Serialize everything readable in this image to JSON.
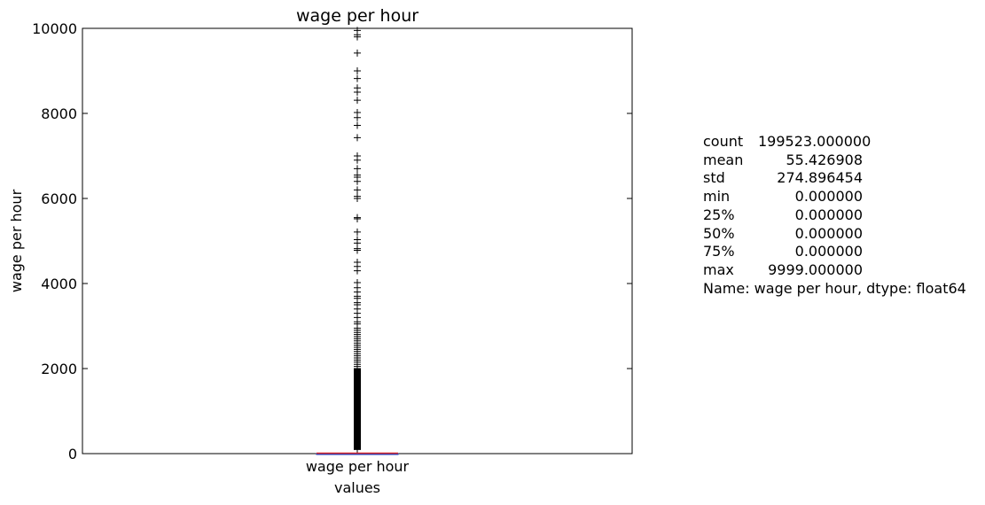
{
  "chart_data": {
    "type": "box",
    "title": "wage per hour",
    "xlabel": "values",
    "ylabel": "wage per hour",
    "categories": [
      "wage per hour"
    ],
    "ylim": [
      0,
      10000
    ],
    "yticks": [
      "0",
      "2000",
      "4000",
      "6000",
      "8000",
      "10000"
    ],
    "grid": false,
    "box": {
      "min": 0,
      "q1": 0,
      "median": 0,
      "q3": 0,
      "max": 0,
      "median_color": "#d62728"
    },
    "outliers": [
      9950,
      9850,
      9800,
      9420,
      9000,
      8820,
      8600,
      8500,
      8310,
      8020,
      7900,
      7720,
      7430,
      7000,
      6900,
      6700,
      6550,
      6500,
      6400,
      6200,
      6050,
      6000,
      5550,
      5520,
      5210,
      5030,
      4950,
      4820,
      4780,
      4500,
      4400,
      4300,
      4020,
      3900,
      3800,
      3700,
      3650,
      3550,
      3500,
      3400,
      3300,
      3200,
      3100,
      3050,
      2950,
      2900,
      2850,
      2800,
      2750,
      2700,
      2650,
      2600,
      2550,
      2500,
      2450,
      2400,
      2350,
      2300,
      2250,
      2200,
      2150,
      2100,
      2050,
      2000,
      1950,
      1900,
      1850,
      1800,
      1750,
      1700,
      1650,
      1600,
      1550,
      1500,
      1450,
      1400,
      1350,
      1300,
      1250,
      1200,
      1150,
      1100,
      1050,
      1000,
      950,
      900,
      850,
      800,
      750,
      700,
      650,
      600,
      550,
      500,
      450,
      400,
      350,
      300,
      250,
      200,
      150,
      100
    ]
  },
  "stats": [
    {
      "key": "count",
      "value": "199523.000000"
    },
    {
      "key": "mean",
      "value": "55.426908"
    },
    {
      "key": "std",
      "value": "274.896454"
    },
    {
      "key": "min",
      "value": "0.000000"
    },
    {
      "key": "25%",
      "value": "0.000000"
    },
    {
      "key": "50%",
      "value": "0.000000"
    },
    {
      "key": "75%",
      "value": "0.000000"
    },
    {
      "key": "max",
      "value": "9999.000000"
    }
  ],
  "stats_footer": "Name: wage per hour, dtype: float64"
}
